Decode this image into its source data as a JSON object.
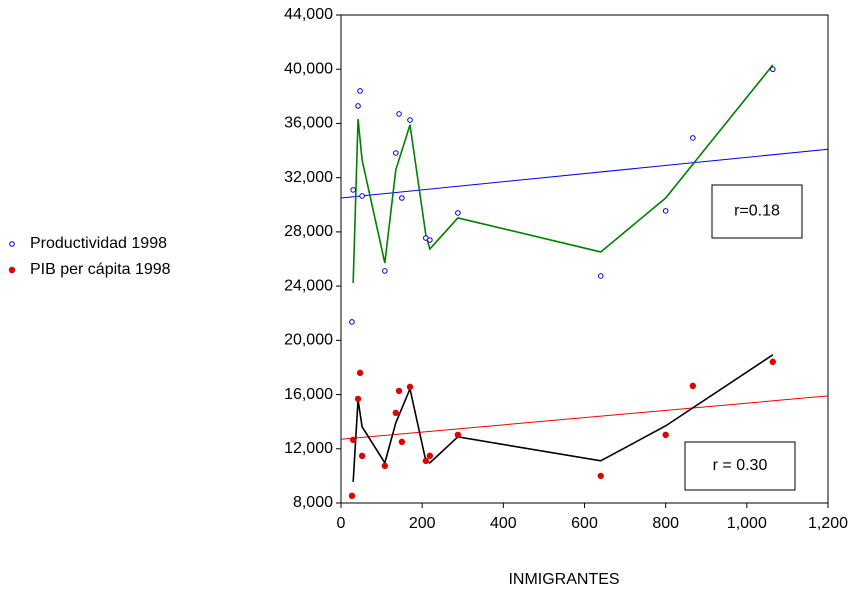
{
  "chart_data": {
    "type": "scatter",
    "x_label": "INMIGRANTES",
    "xlim": [
      0,
      1200
    ],
    "xticks": [
      0,
      200,
      400,
      600,
      800,
      {
        "value": 1000,
        "label": "1,000"
      },
      {
        "value": 1200,
        "label": "1,200"
      }
    ],
    "ylim": [
      8000,
      44000
    ],
    "yticks": [
      {
        "value": 8000,
        "label": "8,000"
      },
      {
        "value": 12000,
        "label": "12,000"
      },
      {
        "value": 16000,
        "label": "16,000"
      },
      {
        "value": 20000,
        "label": "20,000"
      },
      {
        "value": 24000,
        "label": "24,000"
      },
      {
        "value": 28000,
        "label": "28,000"
      },
      {
        "value": 32000,
        "label": "32,000"
      },
      {
        "value": 36000,
        "label": "36,000"
      },
      {
        "value": 40000,
        "label": "40,000"
      },
      {
        "value": 44000,
        "label": "44,000"
      }
    ],
    "series": [
      {
        "name": "Productividad 1998",
        "color": "#0000cc",
        "marker": "hollow",
        "x": [
          27,
          30,
          42,
          47,
          52,
          108,
          135,
          143,
          150,
          170,
          209,
          219,
          288,
          640,
          800,
          867,
          1064
        ],
        "values": [
          21360,
          31100,
          37290,
          38400,
          30650,
          25120,
          33820,
          36700,
          30500,
          36250,
          27550,
          27400,
          29400,
          24750,
          29550,
          34930,
          40000
        ]
      },
      {
        "name": "PIB per cápita 1998",
        "color": "#e00000",
        "marker": "filled",
        "x": [
          27,
          30,
          42,
          47,
          52,
          108,
          135,
          143,
          150,
          170,
          209,
          219,
          288,
          640,
          800,
          867,
          1064
        ],
        "values": [
          8530,
          12660,
          15680,
          17600,
          11480,
          10740,
          14650,
          16270,
          12510,
          16570,
          11110,
          11480,
          13030,
          10000,
          13030,
          16640,
          18410
        ]
      }
    ],
    "lines": [
      {
        "color": "#0000ff",
        "x": [
          0,
          1200
        ],
        "values": [
          30500,
          34100
        ]
      },
      {
        "color": "#ff0000",
        "x": [
          0,
          1200
        ],
        "values": [
          12700,
          15900
        ]
      },
      {
        "color": "#008000",
        "x": [
          30,
          42,
          52,
          108,
          135,
          170,
          209,
          219,
          288,
          640,
          800,
          1064
        ],
        "values": [
          24240,
          36330,
          33300,
          25700,
          32570,
          35900,
          27780,
          26740,
          29030,
          26520,
          30500,
          40310
        ]
      },
      {
        "color": "#000000",
        "x": [
          30,
          42,
          52,
          108,
          135,
          170,
          209,
          219,
          288,
          640,
          800,
          1064
        ],
        "values": [
          9560,
          15610,
          13620,
          10960,
          13910,
          16420,
          11110,
          10960,
          12880,
          11110,
          13690,
          18930
        ]
      }
    ],
    "annotations": [
      "r=0.18",
      "r = 0.30"
    ]
  }
}
